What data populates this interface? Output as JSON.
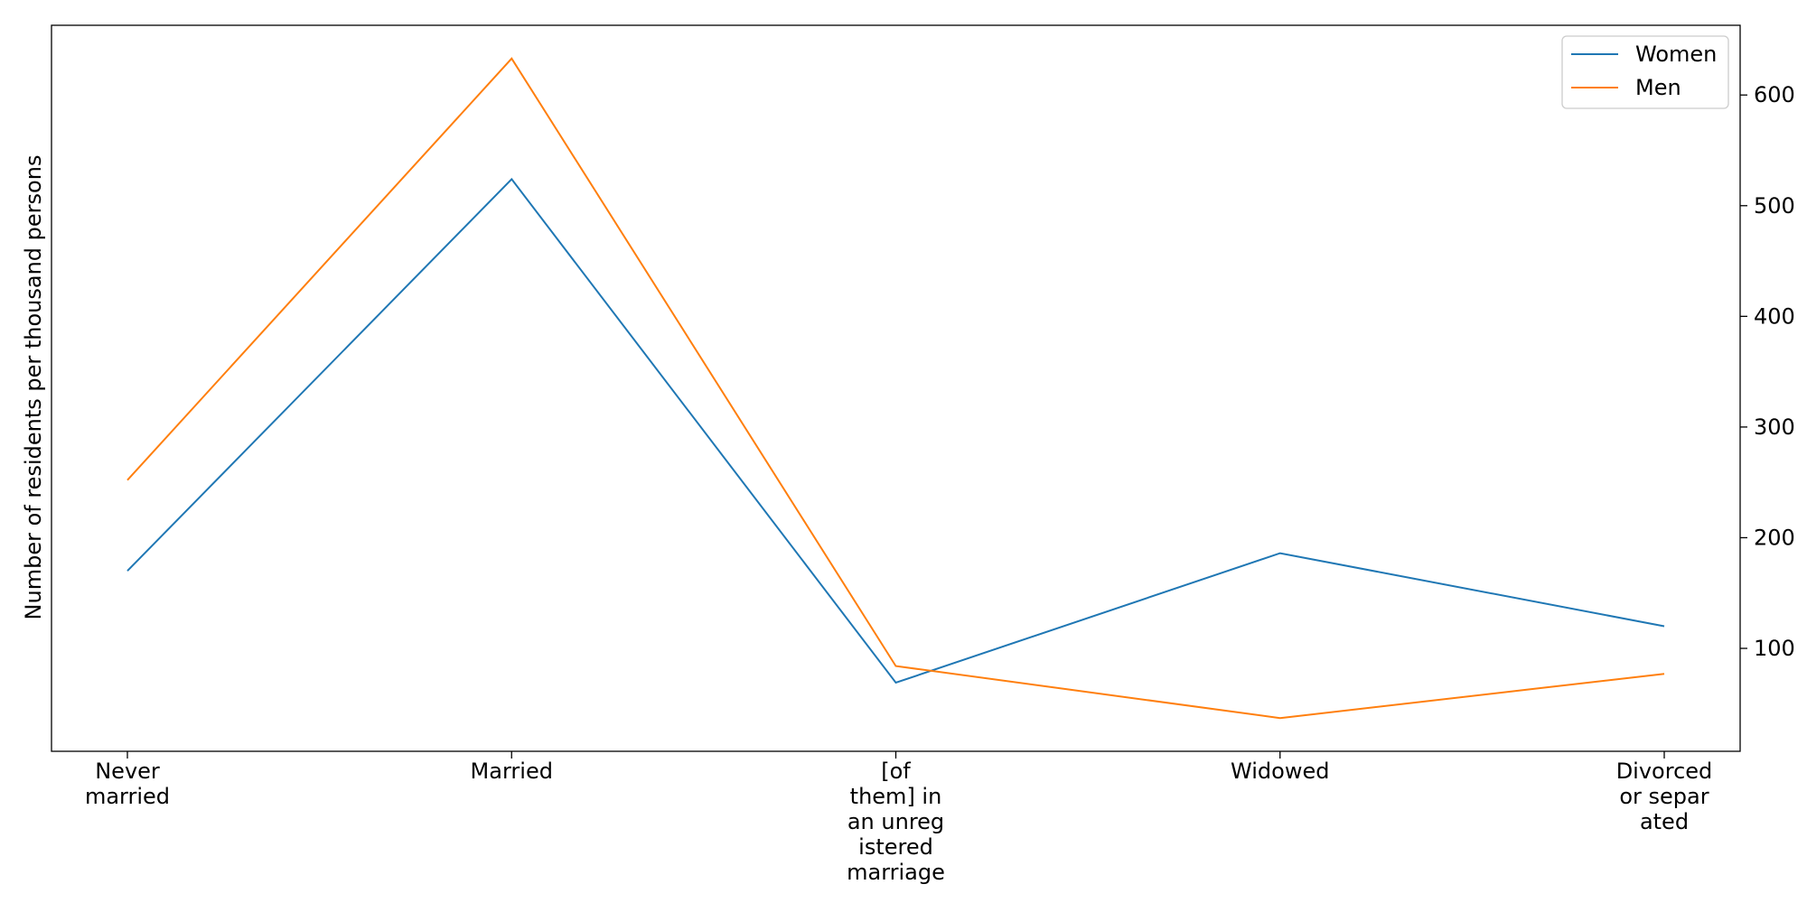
{
  "chart_data": {
    "type": "line",
    "categories": [
      "Never married",
      "Married",
      "[of them] in an unregistered marriage",
      "Widowed",
      "Divorced or separated"
    ],
    "category_label_lines": [
      [
        "Never",
        "married"
      ],
      [
        "Married"
      ],
      [
        "[of",
        "them] in",
        "an unreg",
        "istered",
        "marriage"
      ],
      [
        "Widowed"
      ],
      [
        "Divorced",
        "or separ",
        "ated"
      ]
    ],
    "series": [
      {
        "name": "Women",
        "values": [
          170,
          524,
          69,
          186,
          120
        ],
        "color": "#1f77b4"
      },
      {
        "name": "Men",
        "values": [
          252,
          633,
          84,
          37,
          77
        ],
        "color": "#ff7f0e"
      }
    ],
    "title": "",
    "xlabel": "",
    "ylabel": "Number of residents per thousand persons",
    "ylim": [
      7,
      663
    ],
    "yticks": [
      100,
      200,
      300,
      400,
      500,
      600
    ],
    "y_axis_side": "right",
    "grid": false,
    "legend_position": "top-right"
  }
}
